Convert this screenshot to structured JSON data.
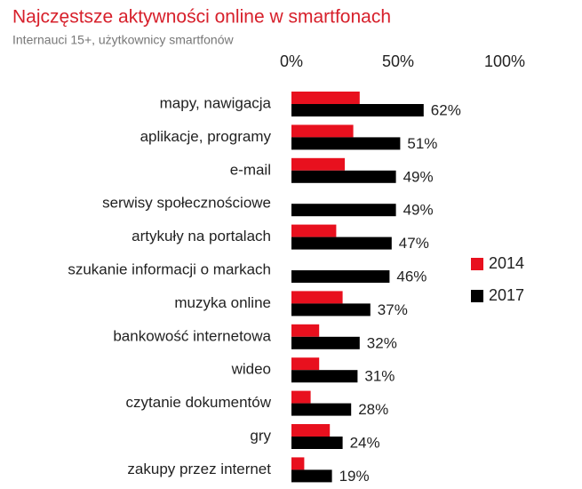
{
  "chart_data": {
    "type": "hbar",
    "title": "Najczęstsze aktywności online w smartfonach",
    "subtitle": "Internauci 15+, użytkownicy smartfonów",
    "categories": [
      "mapy, nawigacja",
      "aplikacje, programy",
      "e-mail",
      "serwisy społecznościowe",
      "artykuły na portalach",
      "szukanie informacji o markach",
      "muzyka online",
      "bankowość internetowa",
      "wideo",
      "czytanie dokumentów",
      "gry",
      "zakupy przez internet"
    ],
    "series": [
      {
        "name": "2014",
        "color": "#e8101e",
        "values": [
          32,
          29,
          25,
          null,
          21,
          null,
          24,
          13,
          13,
          9,
          18,
          6
        ]
      },
      {
        "name": "2017",
        "color": "#000000",
        "values": [
          62,
          51,
          49,
          49,
          47,
          46,
          37,
          32,
          31,
          28,
          24,
          19
        ],
        "value_labels": [
          "62%",
          "51%",
          "49%",
          "49%",
          "47%",
          "46%",
          "37%",
          "32%",
          "31%",
          "28%",
          "24%",
          "19%"
        ]
      }
    ],
    "xlim": [
      0,
      100
    ],
    "xticks": [
      {
        "value": 0,
        "label": "0%"
      },
      {
        "value": 50,
        "label": "50%"
      },
      {
        "value": 100,
        "label": "100%"
      }
    ],
    "grid": false
  }
}
